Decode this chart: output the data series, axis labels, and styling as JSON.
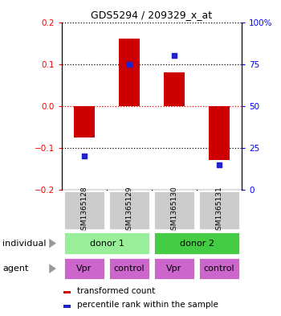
{
  "title": "GDS5294 / 209329_x_at",
  "samples": [
    "GSM1365128",
    "GSM1365129",
    "GSM1365130",
    "GSM1365131"
  ],
  "bar_values": [
    -0.075,
    0.16,
    0.08,
    -0.13
  ],
  "percentile_values": [
    0.2,
    0.75,
    0.8,
    0.15
  ],
  "ylim_left": [
    -0.2,
    0.2
  ],
  "ylim_right": [
    0.0,
    1.0
  ],
  "left_yticks": [
    -0.2,
    -0.1,
    0.0,
    0.1,
    0.2
  ],
  "right_yticks": [
    0.0,
    0.25,
    0.5,
    0.75,
    1.0
  ],
  "right_yticklabels": [
    "0",
    "25",
    "50",
    "75",
    "100%"
  ],
  "bar_color": "#cc0000",
  "blue_color": "#2222cc",
  "individuals": [
    [
      "donor 1",
      0,
      2,
      "#99ee99"
    ],
    [
      "donor 2",
      2,
      4,
      "#44cc44"
    ]
  ],
  "agents": [
    "Vpr",
    "control",
    "Vpr",
    "control"
  ],
  "agent_color": "#cc66cc",
  "sample_bg_color": "#cccccc",
  "legend_red_label": "transformed count",
  "legend_blue_label": "percentile rank within the sample",
  "left_label_individual": "individual",
  "left_label_agent": "agent",
  "arrow_color": "#999999",
  "fig_width": 3.5,
  "fig_height": 3.93,
  "dpi": 100
}
